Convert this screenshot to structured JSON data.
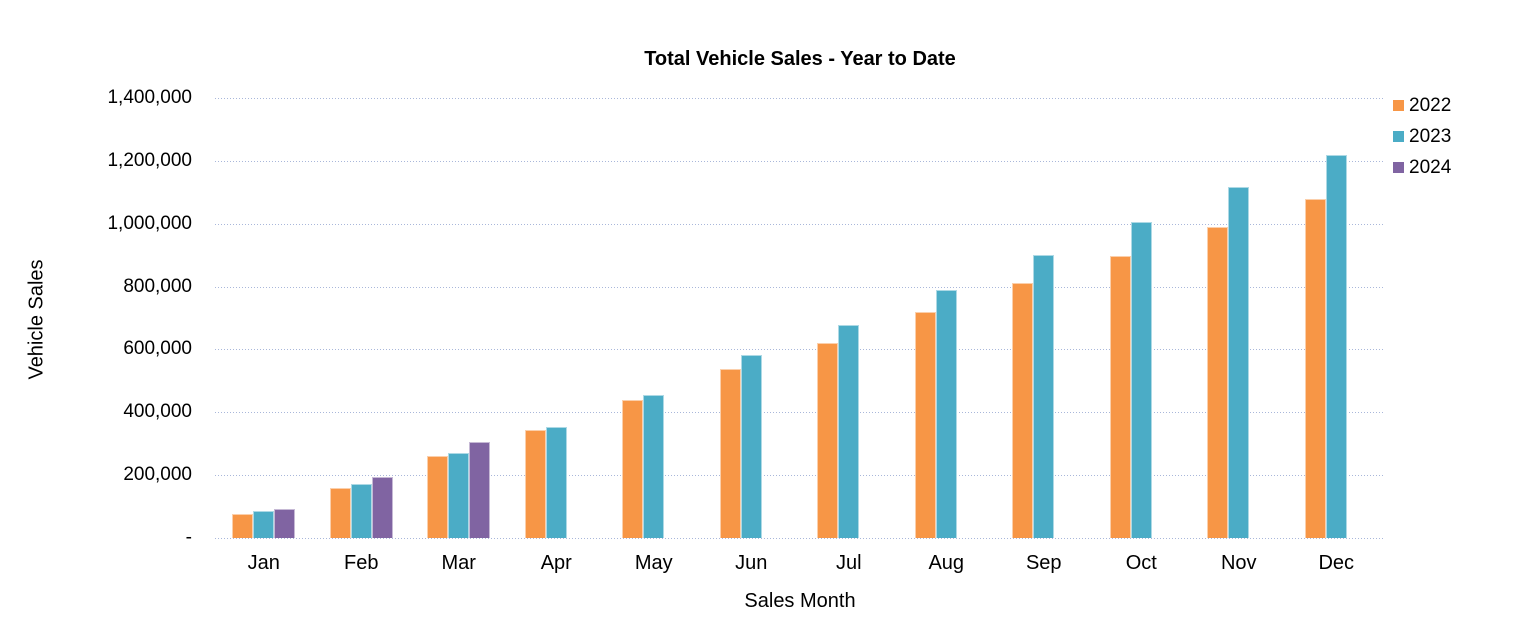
{
  "chart_data": {
    "type": "bar",
    "title": "Total Vehicle Sales - Year to Date",
    "xlabel": "Sales Month",
    "ylabel": "Vehicle Sales",
    "categories": [
      "Jan",
      "Feb",
      "Mar",
      "Apr",
      "May",
      "Jun",
      "Jul",
      "Aug",
      "Sep",
      "Oct",
      "Nov",
      "Dec"
    ],
    "series": [
      {
        "name": "2022",
        "color": "#F79646",
        "values": [
          75000,
          160000,
          262000,
          344000,
          440000,
          537000,
          622000,
          718000,
          812000,
          898000,
          990000,
          1080000
        ]
      },
      {
        "name": "2023",
        "color": "#4BACC6",
        "values": [
          87000,
          172000,
          270000,
          352000,
          456000,
          582000,
          678000,
          788000,
          900000,
          1006000,
          1118000,
          1218000
        ]
      },
      {
        "name": "2024",
        "color": "#8064A2",
        "values": [
          92000,
          195000,
          305000,
          null,
          null,
          null,
          null,
          null,
          null,
          null,
          null,
          null
        ]
      }
    ],
    "ylim": [
      0,
      1400000
    ],
    "ytick_interval": 200000,
    "ytick_labels": [
      "1,400,000",
      "1,200,000",
      "1,000,000",
      "800,000",
      "600,000",
      "400,000",
      "200,000",
      "-"
    ],
    "grid": "horizontal-dotted",
    "gridline_color": "#A9B7DA",
    "legend_position": "top-right",
    "text_color": "#000000",
    "background": "#FFFFFF"
  }
}
